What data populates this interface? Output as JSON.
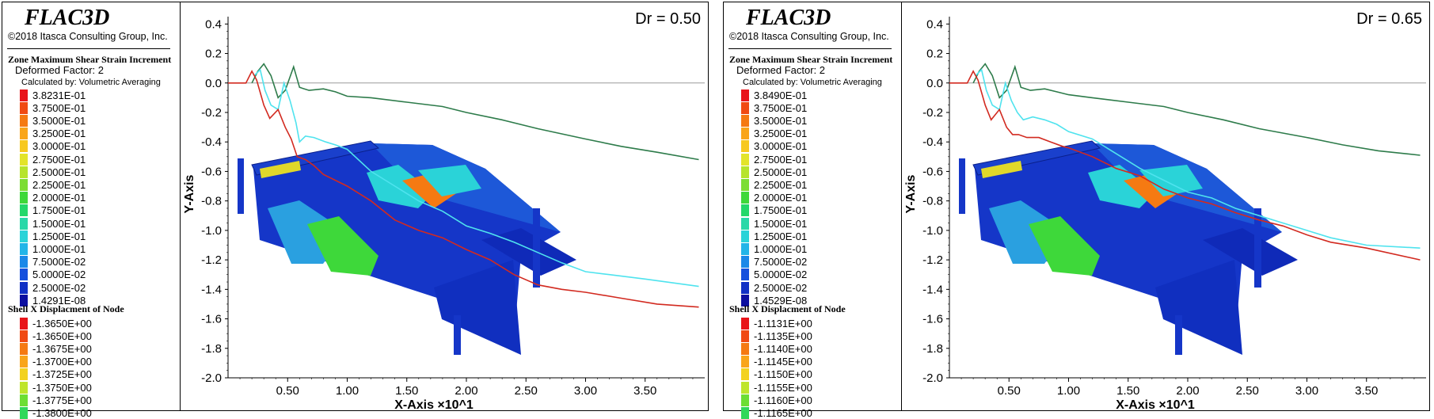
{
  "panels": [
    {
      "brand": "FLAC3D",
      "copyright": "©2018 Itasca Consulting Group, Inc.",
      "contour_title": "Zone Maximum Shear Strain Increment",
      "deformed": "Deformed Factor: 2",
      "calc": "Calculated by: Volumetric Averaging",
      "contour_values": [
        "3.8231E-01",
        "3.7500E-01",
        "3.5000E-01",
        "3.2500E-01",
        "3.0000E-01",
        "2.7500E-01",
        "2.5000E-01",
        "2.2500E-01",
        "2.0000E-01",
        "1.7500E-01",
        "1.5000E-01",
        "1.2500E-01",
        "1.0000E-01",
        "7.5000E-02",
        "5.0000E-02",
        "2.5000E-02",
        "1.4291E-08"
      ],
      "shell_title": "Shell X Displacment of Node",
      "shell_values": [
        "-1.3650E+00",
        "-1.3650E+00",
        "-1.3675E+00",
        "-1.3700E+00",
        "-1.3725E+00",
        "-1.3750E+00",
        "-1.3775E+00",
        "-1.3800E+00"
      ],
      "dr_label": "Dr = 0.50"
    },
    {
      "brand": "FLAC3D",
      "copyright": "©2018 Itasca Consulting Group, Inc.",
      "contour_title": "Zone Maximum Shear Strain Increment",
      "deformed": "Deformed Factor: 2",
      "calc": "Calculated by: Volumetric Averaging",
      "contour_values": [
        "3.8490E-01",
        "3.7500E-01",
        "3.5000E-01",
        "3.2500E-01",
        "3.0000E-01",
        "2.7500E-01",
        "2.5000E-01",
        "2.2500E-01",
        "2.0000E-01",
        "1.7500E-01",
        "1.5000E-01",
        "1.2500E-01",
        "1.0000E-01",
        "7.5000E-02",
        "5.0000E-02",
        "2.5000E-02",
        "1.4529E-08"
      ],
      "shell_title": "Shell X Displacment of Node",
      "shell_values": [
        "-1.1131E+00",
        "-1.1135E+00",
        "-1.1140E+00",
        "-1.1145E+00",
        "-1.1150E+00",
        "-1.1155E+00",
        "-1.1160E+00",
        "-1.1165E+00"
      ],
      "dr_label": "Dr = 0.65"
    }
  ],
  "colors": {
    "contour_scale": [
      "#e8141a",
      "#f04a12",
      "#f57a12",
      "#f9a51a",
      "#f7c81f",
      "#e3e42a",
      "#b6e42c",
      "#7cdd33",
      "#3ed83a",
      "#23d86a",
      "#2ad8a8",
      "#2ad3d8",
      "#22b5e8",
      "#1b88e8",
      "#1550dd",
      "#1030c5",
      "#0c0fa0"
    ],
    "shell_scale": [
      "#e8141a",
      "#f04a12",
      "#f57a12",
      "#f9a51a",
      "#f3d21f",
      "#bfe52b",
      "#6dde33",
      "#31d85a"
    ],
    "series": {
      "dark_green": "#2d7b4a",
      "cyan": "#4fe3ee",
      "red": "#d22a20",
      "gray_zero": "#9a9a9a"
    }
  },
  "chart_data": [
    {
      "type": "line",
      "xlabel": "X-Axis ×10^1",
      "ylabel": "Y-Axis",
      "xlim": [
        0.0,
        4.0
      ],
      "ylim": [
        -2.0,
        0.45
      ],
      "x_ticks": [
        "0.50",
        "1.00",
        "1.50",
        "2.00",
        "2.50",
        "3.00",
        "3.50"
      ],
      "y_ticks": [
        "0.4",
        "0.2",
        "0.0",
        "-0.2",
        "-0.4",
        "-0.6",
        "-0.8",
        "-1.0",
        "-1.2",
        "-1.4",
        "-1.6",
        "-1.8",
        "-2.0"
      ],
      "series": [
        {
          "color": "dark_green",
          "points": [
            [
              0.2,
              0.0
            ],
            [
              0.25,
              0.08
            ],
            [
              0.3,
              0.13
            ],
            [
              0.36,
              0.05
            ],
            [
              0.42,
              -0.1
            ],
            [
              0.48,
              -0.05
            ],
            [
              0.55,
              0.11
            ],
            [
              0.6,
              -0.03
            ],
            [
              0.68,
              -0.05
            ],
            [
              0.8,
              -0.04
            ],
            [
              0.9,
              -0.06
            ],
            [
              1.0,
              -0.09
            ],
            [
              1.2,
              -0.1
            ],
            [
              1.5,
              -0.13
            ],
            [
              1.8,
              -0.16
            ],
            [
              2.0,
              -0.2
            ],
            [
              2.3,
              -0.25
            ],
            [
              2.6,
              -0.31
            ],
            [
              3.0,
              -0.38
            ],
            [
              3.3,
              -0.43
            ],
            [
              3.6,
              -0.47
            ],
            [
              3.95,
              -0.52
            ]
          ]
        },
        {
          "color": "cyan",
          "points": [
            [
              0.22,
              0.05
            ],
            [
              0.27,
              0.09
            ],
            [
              0.31,
              -0.05
            ],
            [
              0.36,
              -0.15
            ],
            [
              0.42,
              -0.18
            ],
            [
              0.47,
              0.0
            ],
            [
              0.52,
              -0.12
            ],
            [
              0.57,
              -0.27
            ],
            [
              0.6,
              -0.4
            ],
            [
              0.65,
              -0.36
            ],
            [
              0.72,
              -0.37
            ],
            [
              0.82,
              -0.4
            ],
            [
              0.9,
              -0.42
            ],
            [
              1.0,
              -0.45
            ],
            [
              1.2,
              -0.6
            ],
            [
              1.4,
              -0.7
            ],
            [
              1.6,
              -0.8
            ],
            [
              1.8,
              -0.87
            ],
            [
              2.0,
              -0.97
            ],
            [
              2.2,
              -1.02
            ],
            [
              2.4,
              -1.08
            ],
            [
              2.6,
              -1.15
            ],
            [
              2.8,
              -1.22
            ],
            [
              3.0,
              -1.28
            ],
            [
              3.2,
              -1.3
            ],
            [
              3.5,
              -1.33
            ],
            [
              3.95,
              -1.38
            ]
          ]
        },
        {
          "color": "red",
          "points": [
            [
              0.0,
              0.0
            ],
            [
              0.15,
              0.0
            ],
            [
              0.2,
              0.08
            ],
            [
              0.24,
              0.02
            ],
            [
              0.3,
              -0.15
            ],
            [
              0.35,
              -0.24
            ],
            [
              0.42,
              -0.18
            ],
            [
              0.48,
              -0.3
            ],
            [
              0.53,
              -0.38
            ],
            [
              0.58,
              -0.5
            ],
            [
              0.65,
              -0.52
            ],
            [
              0.72,
              -0.56
            ],
            [
              0.8,
              -0.62
            ],
            [
              0.9,
              -0.66
            ],
            [
              1.0,
              -0.7
            ],
            [
              1.2,
              -0.8
            ],
            [
              1.4,
              -0.93
            ],
            [
              1.6,
              -1.0
            ],
            [
              1.8,
              -1.05
            ],
            [
              2.0,
              -1.13
            ],
            [
              2.2,
              -1.2
            ],
            [
              2.4,
              -1.3
            ],
            [
              2.6,
              -1.37
            ],
            [
              2.8,
              -1.4
            ],
            [
              3.0,
              -1.42
            ],
            [
              3.3,
              -1.46
            ],
            [
              3.6,
              -1.5
            ],
            [
              3.95,
              -1.52
            ]
          ]
        }
      ]
    },
    {
      "type": "line",
      "xlabel": "X-Axis ×10^1",
      "ylabel": "Y-Axis",
      "xlim": [
        0.0,
        4.0
      ],
      "ylim": [
        -2.0,
        0.45
      ],
      "x_ticks": [
        "0.50",
        "1.00",
        "1.50",
        "2.00",
        "2.50",
        "3.00",
        "3.50"
      ],
      "y_ticks": [
        "0.4",
        "0.2",
        "0.0",
        "-0.2",
        "-0.4",
        "-0.6",
        "-0.8",
        "-1.0",
        "-1.2",
        "-1.4",
        "-1.6",
        "-1.8",
        "-2.0"
      ],
      "series": [
        {
          "color": "dark_green",
          "points": [
            [
              0.2,
              0.0
            ],
            [
              0.25,
              0.08
            ],
            [
              0.3,
              0.13
            ],
            [
              0.36,
              0.05
            ],
            [
              0.42,
              -0.1
            ],
            [
              0.48,
              -0.05
            ],
            [
              0.55,
              0.11
            ],
            [
              0.6,
              -0.03
            ],
            [
              0.68,
              -0.05
            ],
            [
              0.8,
              -0.04
            ],
            [
              0.9,
              -0.06
            ],
            [
              1.0,
              -0.08
            ],
            [
              1.2,
              -0.1
            ],
            [
              1.5,
              -0.13
            ],
            [
              1.8,
              -0.16
            ],
            [
              2.0,
              -0.2
            ],
            [
              2.3,
              -0.25
            ],
            [
              2.6,
              -0.31
            ],
            [
              3.0,
              -0.37
            ],
            [
              3.3,
              -0.42
            ],
            [
              3.6,
              -0.46
            ],
            [
              3.95,
              -0.49
            ]
          ]
        },
        {
          "color": "cyan",
          "points": [
            [
              0.22,
              0.05
            ],
            [
              0.27,
              0.09
            ],
            [
              0.31,
              -0.05
            ],
            [
              0.36,
              -0.15
            ],
            [
              0.42,
              -0.18
            ],
            [
              0.47,
              0.0
            ],
            [
              0.52,
              -0.12
            ],
            [
              0.57,
              -0.2
            ],
            [
              0.62,
              -0.25
            ],
            [
              0.7,
              -0.23
            ],
            [
              0.8,
              -0.25
            ],
            [
              0.9,
              -0.28
            ],
            [
              1.0,
              -0.33
            ],
            [
              1.2,
              -0.38
            ],
            [
              1.4,
              -0.48
            ],
            [
              1.6,
              -0.58
            ],
            [
              1.8,
              -0.66
            ],
            [
              2.0,
              -0.74
            ],
            [
              2.2,
              -0.78
            ],
            [
              2.4,
              -0.85
            ],
            [
              2.6,
              -0.9
            ],
            [
              2.8,
              -0.95
            ],
            [
              3.0,
              -1.0
            ],
            [
              3.2,
              -1.05
            ],
            [
              3.5,
              -1.1
            ],
            [
              3.95,
              -1.12
            ]
          ]
        },
        {
          "color": "red",
          "points": [
            [
              0.0,
              0.0
            ],
            [
              0.15,
              0.0
            ],
            [
              0.2,
              0.08
            ],
            [
              0.24,
              0.02
            ],
            [
              0.3,
              -0.15
            ],
            [
              0.35,
              -0.25
            ],
            [
              0.42,
              -0.18
            ],
            [
              0.48,
              -0.3
            ],
            [
              0.53,
              -0.35
            ],
            [
              0.58,
              -0.35
            ],
            [
              0.65,
              -0.37
            ],
            [
              0.75,
              -0.37
            ],
            [
              0.85,
              -0.4
            ],
            [
              0.95,
              -0.43
            ],
            [
              1.0,
              -0.44
            ],
            [
              1.2,
              -0.5
            ],
            [
              1.4,
              -0.58
            ],
            [
              1.6,
              -0.63
            ],
            [
              1.8,
              -0.72
            ],
            [
              2.0,
              -0.78
            ],
            [
              2.2,
              -0.82
            ],
            [
              2.4,
              -0.88
            ],
            [
              2.6,
              -0.93
            ],
            [
              2.8,
              -0.97
            ],
            [
              3.0,
              -1.03
            ],
            [
              3.2,
              -1.08
            ],
            [
              3.5,
              -1.12
            ],
            [
              3.95,
              -1.2
            ]
          ]
        }
      ]
    }
  ]
}
